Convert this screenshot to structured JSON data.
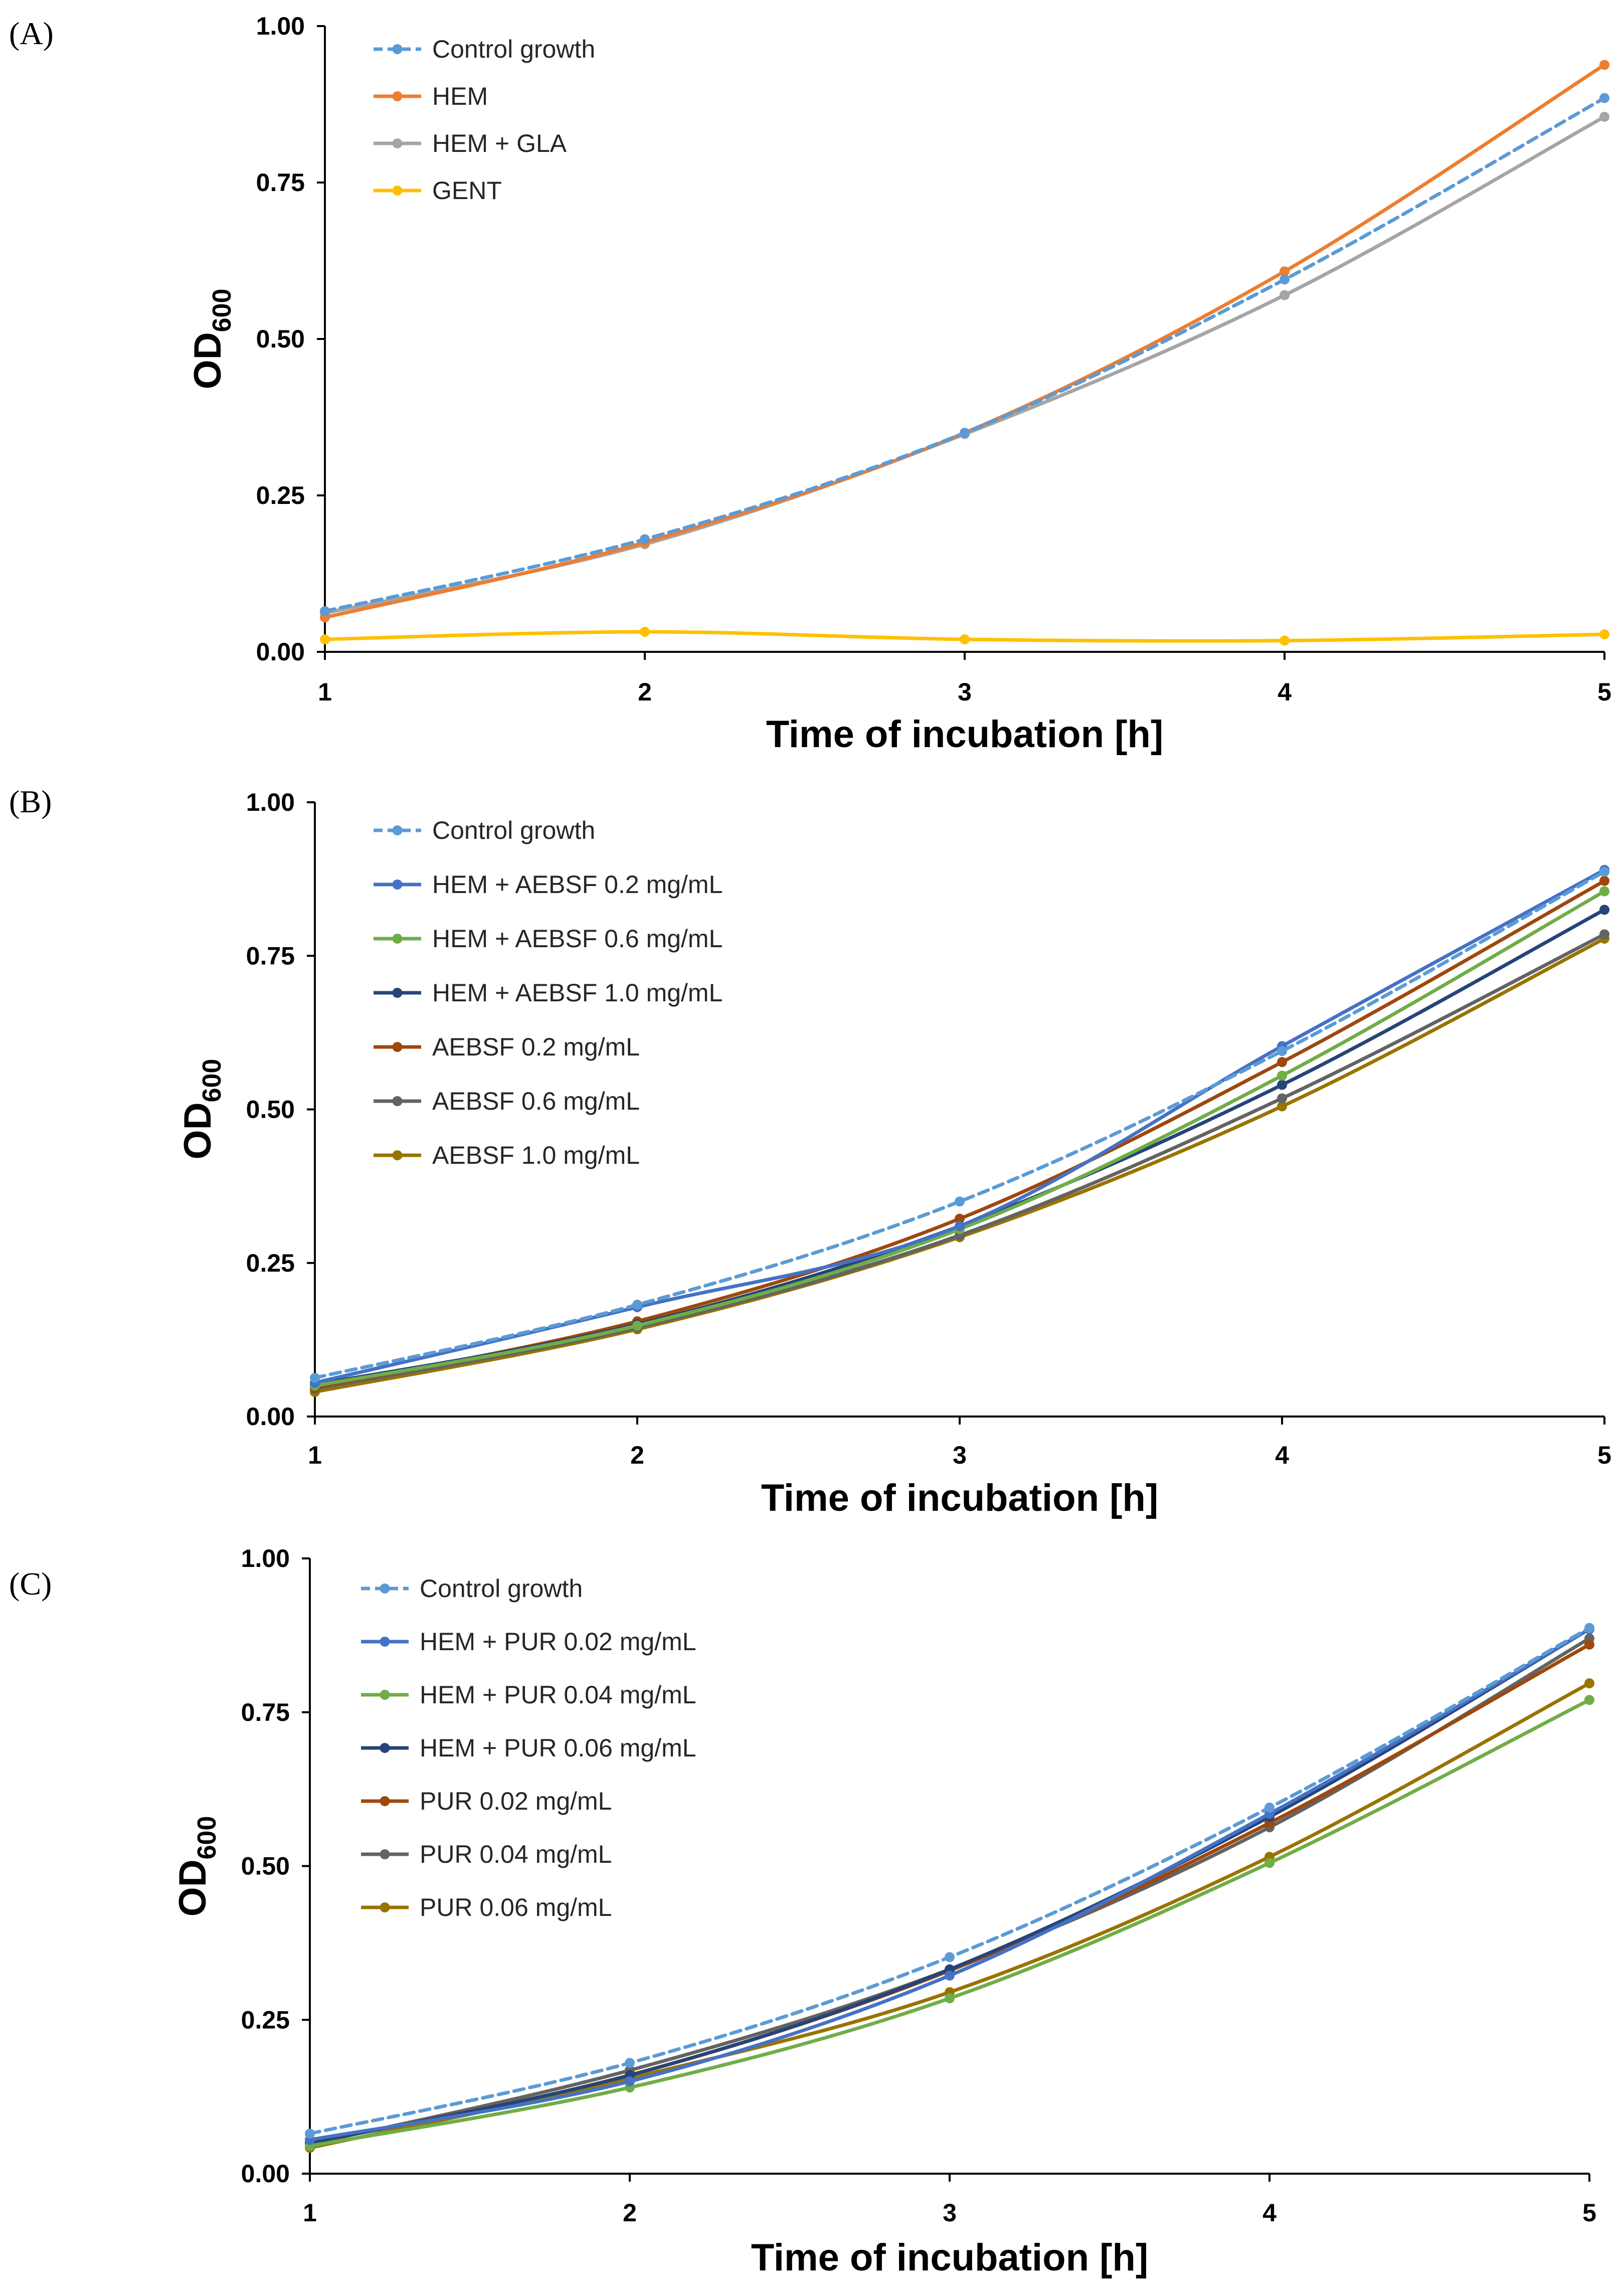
{
  "chart_data": [
    {
      "type": "line",
      "panel_label": "(A)",
      "x": [
        1,
        2,
        3,
        4,
        5
      ],
      "x_tick_labels": [
        "1",
        "2",
        "3",
        "4",
        "5"
      ],
      "y_tick_labels": [
        "0.00",
        "0.25",
        "0.50",
        "0.75",
        "1.00"
      ],
      "xlim": [
        1,
        5
      ],
      "ylim": [
        0,
        1
      ],
      "ylabel_main": "OD",
      "ylabel_sub": "600",
      "xlabel": "Time of incubation [h]",
      "legend_position": "top-left",
      "grid": false,
      "series": [
        {
          "name": "Control growth",
          "color": "#5B9BD5",
          "dashed": true,
          "values": [
            0.065,
            0.18,
            0.35,
            0.595,
            0.885
          ]
        },
        {
          "name": "HEM",
          "color": "#ED7D31",
          "dashed": false,
          "values": [
            0.055,
            0.175,
            0.35,
            0.608,
            0.938
          ]
        },
        {
          "name": "HEM + GLA",
          "color": "#A5A5A5",
          "dashed": false,
          "values": [
            0.062,
            0.172,
            0.348,
            0.57,
            0.855
          ]
        },
        {
          "name": "GENT",
          "color": "#FFC000",
          "dashed": false,
          "values": [
            0.02,
            0.032,
            0.02,
            0.018,
            0.028
          ]
        }
      ]
    },
    {
      "type": "line",
      "panel_label": "(B)",
      "x": [
        1,
        2,
        3,
        4,
        5
      ],
      "x_tick_labels": [
        "1",
        "2",
        "3",
        "4",
        "5"
      ],
      "y_tick_labels": [
        "0.00",
        "0.25",
        "0.50",
        "0.75",
        "1.00"
      ],
      "xlim": [
        1,
        5
      ],
      "ylim": [
        0,
        1
      ],
      "ylabel_main": "OD",
      "ylabel_sub": "600",
      "xlabel": "Time of incubation [h]",
      "legend_position": "top-left",
      "grid": false,
      "series": [
        {
          "name": "Control growth",
          "color": "#5B9BD5",
          "dashed": true,
          "values": [
            0.063,
            0.182,
            0.35,
            0.595,
            0.887
          ]
        },
        {
          "name": "HEM + AEBSF 0.2 mg/mL",
          "color": "#4472C4",
          "dashed": false,
          "values": [
            0.055,
            0.178,
            0.31,
            0.603,
            0.89
          ]
        },
        {
          "name": "HEM + AEBSF 0.6 mg/mL",
          "color": "#70AD47",
          "dashed": false,
          "values": [
            0.05,
            0.148,
            0.305,
            0.555,
            0.855
          ]
        },
        {
          "name": "HEM + AEBSF 1.0 mg/mL",
          "color": "#264478",
          "dashed": false,
          "values": [
            0.052,
            0.15,
            0.31,
            0.54,
            0.825
          ]
        },
        {
          "name": "AEBSF 0.2 mg/mL",
          "color": "#9E480E",
          "dashed": false,
          "values": [
            0.047,
            0.155,
            0.322,
            0.577,
            0.872
          ]
        },
        {
          "name": "AEBSF 0.6 mg/mL",
          "color": "#636363",
          "dashed": false,
          "values": [
            0.045,
            0.145,
            0.295,
            0.518,
            0.785
          ]
        },
        {
          "name": "AEBSF 1.0 mg/mL",
          "color": "#997300",
          "dashed": false,
          "values": [
            0.04,
            0.142,
            0.292,
            0.505,
            0.778
          ]
        }
      ]
    },
    {
      "type": "line",
      "panel_label": "(C)",
      "x": [
        1,
        2,
        3,
        4,
        5
      ],
      "x_tick_labels": [
        "1",
        "2",
        "3",
        "4",
        "5"
      ],
      "y_tick_labels": [
        "0.00",
        "0.25",
        "0.50",
        "0.75",
        "1.00"
      ],
      "xlim": [
        1,
        5
      ],
      "ylim": [
        0,
        1
      ],
      "ylabel_main": "OD",
      "ylabel_sub": "600",
      "xlabel": "Time of incubation [h]",
      "legend_position": "top-left",
      "grid": false,
      "series": [
        {
          "name": "Control growth",
          "color": "#5B9BD5",
          "dashed": true,
          "values": [
            0.065,
            0.18,
            0.352,
            0.595,
            0.887
          ]
        },
        {
          "name": "HEM + PUR 0.02 mg/mL",
          "color": "#4472C4",
          "dashed": false,
          "values": [
            0.055,
            0.15,
            0.322,
            0.585,
            0.885
          ]
        },
        {
          "name": "HEM + PUR 0.04 mg/mL",
          "color": "#70AD47",
          "dashed": false,
          "values": [
            0.045,
            0.14,
            0.285,
            0.505,
            0.77
          ]
        },
        {
          "name": "HEM + PUR 0.06 mg/mL",
          "color": "#264478",
          "dashed": false,
          "values": [
            0.05,
            0.16,
            0.332,
            0.58,
            0.885
          ]
        },
        {
          "name": "PUR 0.02 mg/mL",
          "color": "#9E480E",
          "dashed": false,
          "values": [
            0.05,
            0.16,
            0.33,
            0.57,
            0.86
          ]
        },
        {
          "name": "PUR 0.04 mg/mL",
          "color": "#636363",
          "dashed": false,
          "values": [
            0.048,
            0.168,
            0.332,
            0.563,
            0.87
          ]
        },
        {
          "name": "PUR 0.06 mg/mL",
          "color": "#997300",
          "dashed": false,
          "values": [
            0.042,
            0.155,
            0.295,
            0.515,
            0.797
          ]
        }
      ]
    }
  ]
}
